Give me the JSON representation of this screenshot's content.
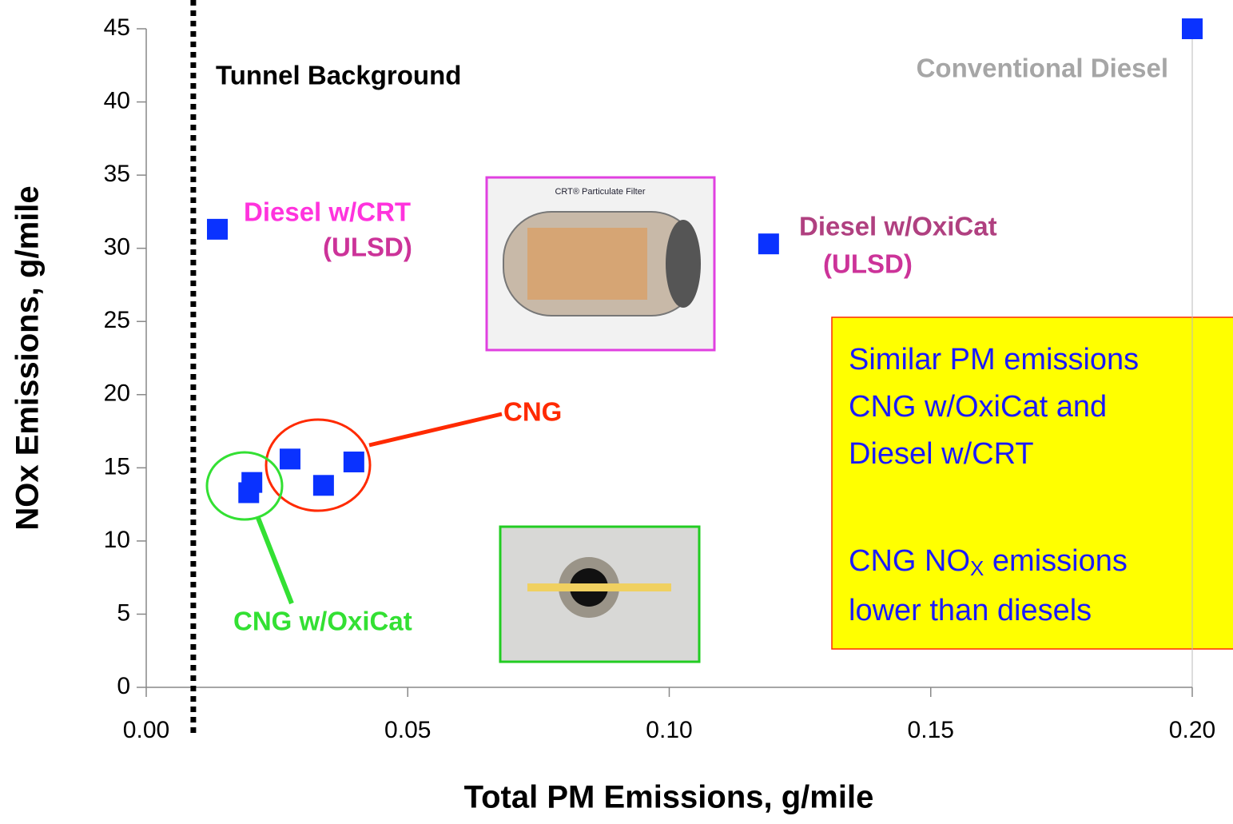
{
  "chart_data": {
    "type": "scatter",
    "x_label": "Total PM Emissions, g/mile",
    "y_label": "NOx Emissions, g/mile",
    "xlim": [
      0,
      0.2
    ],
    "ylim": [
      0,
      45
    ],
    "xticks": [
      {
        "value": 0,
        "label": "0.00"
      },
      {
        "value": 0.05,
        "label": "0.05"
      },
      {
        "value": 0.1,
        "label": "0.10"
      },
      {
        "value": 0.15,
        "label": "0.15"
      },
      {
        "value": 0.2,
        "label": "0.20"
      }
    ],
    "yticks": [
      0,
      5,
      10,
      15,
      20,
      25,
      30,
      35,
      40,
      45
    ],
    "series": [
      {
        "color": "#0a32ff",
        "x": [
          0.2,
          0.0136,
          0.119,
          0.0275,
          0.0397,
          0.0339,
          0.0202,
          0.0196
        ],
        "values": [
          45,
          31.3,
          30.3,
          15.6,
          15.4,
          13.8,
          14.0,
          13.3
        ]
      }
    ],
    "reference_line": {
      "x": 0.009,
      "label": "Tunnel Background"
    },
    "annotations": [
      {
        "text": "Conventional Diesel",
        "color": "#a6a6a6"
      },
      {
        "text": "Diesel w/CRT",
        "color": "#ff33dd"
      },
      {
        "text": "(ULSD)",
        "color": "#cc3399"
      },
      {
        "text": "Diesel w/OxiCat",
        "color": "#b04080"
      },
      {
        "text": "(ULSD)",
        "color": "#cc3399"
      },
      {
        "text": "CNG",
        "color": "#ff2a00"
      },
      {
        "text": "CNG w/OxiCat",
        "color": "#33e033"
      }
    ],
    "image_caption": "CRT® Particulate Filter",
    "note": {
      "lines": [
        "Similar PM emissions",
        "CNG w/OxiCat and",
        "Diesel w/CRT"
      ],
      "nox_line": {
        "before": "CNG NO",
        "sub": "X",
        "after": " emissions"
      },
      "last_line": "lower than diesels"
    }
  }
}
